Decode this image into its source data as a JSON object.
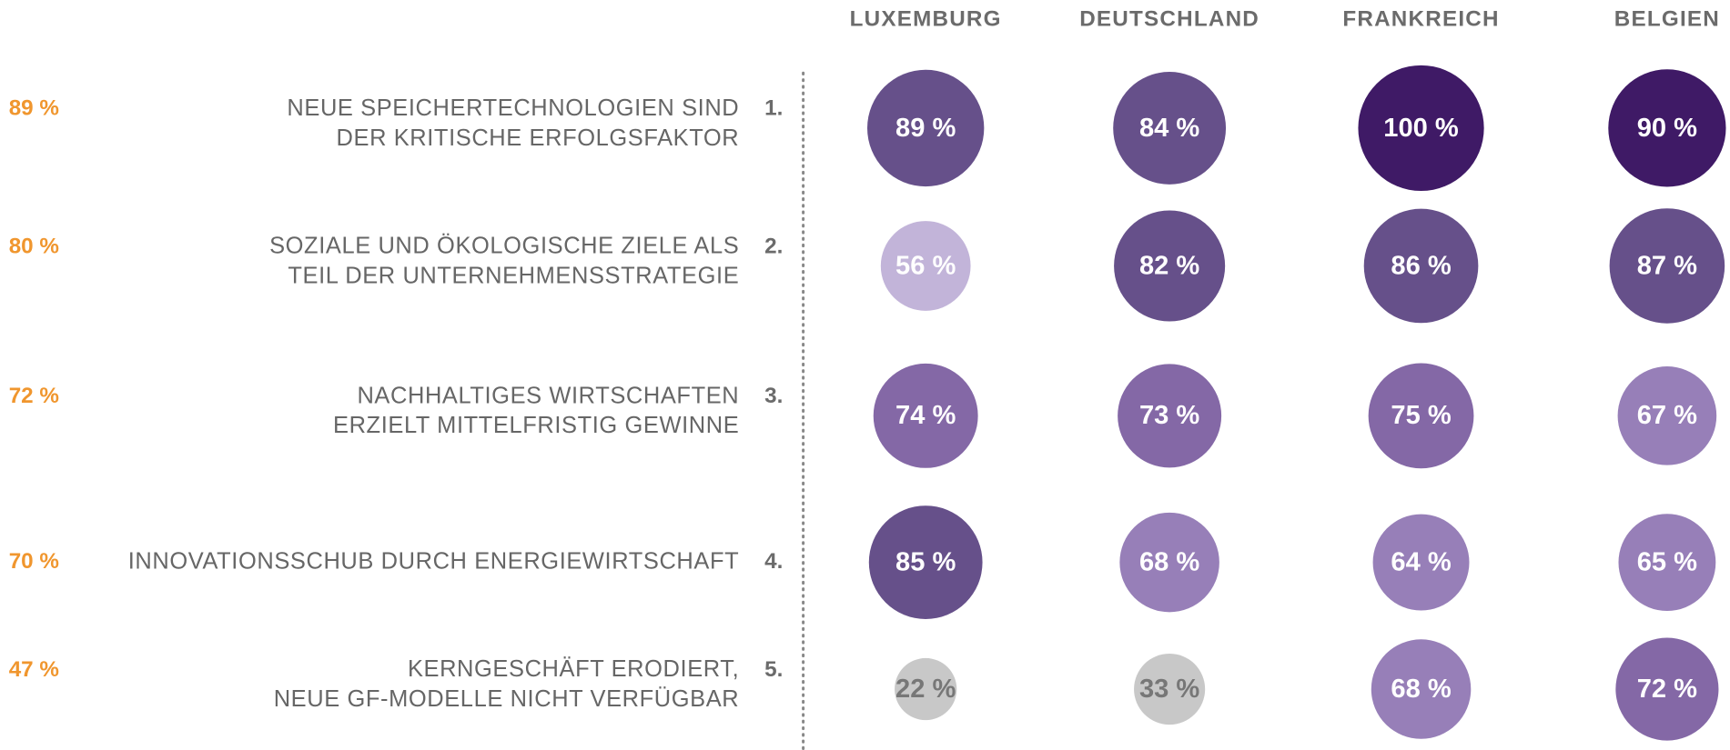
{
  "chart_data": {
    "type": "bubble",
    "categories": [
      "LUXEMBURG",
      "DEUTSCHLAND",
      "FRANKREICH",
      "BELGIEN"
    ],
    "series": [
      {
        "rank": "1.",
        "label_lines": [
          "NEUE SPEICHERTECHNOLOGIEN SIND",
          "DER KRITISCHE ERFOLGSFAKTOR"
        ],
        "total": 89,
        "total_label": "89 %",
        "values": [
          89,
          84,
          100,
          90
        ],
        "value_labels": [
          "89 %",
          "84 %",
          "100 %",
          "90 %"
        ],
        "colors": [
          "#66508a",
          "#66508a",
          "#3f1a66",
          "#3f1a66"
        ],
        "value_label_colors": [
          "#ffffff",
          "#ffffff",
          "#ffffff",
          "#ffffff"
        ]
      },
      {
        "rank": "2.",
        "label_lines": [
          "SOZIALE UND ÖKOLOGISCHE ZIELE ALS",
          "TEIL DER UNTERNEHMENSSTRATEGIE"
        ],
        "total": 80,
        "total_label": "80 %",
        "values": [
          56,
          82,
          86,
          87
        ],
        "value_labels": [
          "56 %",
          "82 %",
          "86 %",
          "87 %"
        ],
        "colors": [
          "#c2b4d9",
          "#66508a",
          "#66508a",
          "#66508a"
        ],
        "value_label_colors": [
          "#ffffff",
          "#ffffff",
          "#ffffff",
          "#ffffff"
        ]
      },
      {
        "rank": "3.",
        "label_lines": [
          "NACHHALTIGES WIRTSCHAFTEN",
          "ERZIELT MITTELFRISTIG GEWINNE"
        ],
        "total": 72,
        "total_label": "72 %",
        "values": [
          74,
          73,
          75,
          67
        ],
        "value_labels": [
          "74 %",
          "73 %",
          "75 %",
          "67 %"
        ],
        "colors": [
          "#8468a6",
          "#8468a6",
          "#8468a6",
          "#977fb8"
        ],
        "value_label_colors": [
          "#ffffff",
          "#ffffff",
          "#ffffff",
          "#ffffff"
        ]
      },
      {
        "rank": "4.",
        "label_lines": [
          "INNOVATIONSSCHUB DURCH ENERGIEWIRTSCHAFT"
        ],
        "total": 70,
        "total_label": "70 %",
        "values": [
          85,
          68,
          64,
          65
        ],
        "value_labels": [
          "85 %",
          "68 %",
          "64 %",
          "65 %"
        ],
        "colors": [
          "#66508a",
          "#977fb8",
          "#977fb8",
          "#977fb8"
        ],
        "value_label_colors": [
          "#ffffff",
          "#ffffff",
          "#ffffff",
          "#ffffff"
        ]
      },
      {
        "rank": "5.",
        "label_lines": [
          "KERNGESCHÄFT ERODIERT,",
          "NEUE GF-MODELLE NICHT VERFÜGBAR"
        ],
        "total": 47,
        "total_label": "47 %",
        "values": [
          22,
          33,
          68,
          72
        ],
        "value_labels": [
          "22 %",
          "33 %",
          "68 %",
          "72 %"
        ],
        "colors": [
          "#c8c8c8",
          "#c8c8c8",
          "#977fb8",
          "#8468a6"
        ],
        "value_label_colors": [
          "#777777",
          "#777777",
          "#ffffff",
          "#ffffff"
        ]
      }
    ]
  }
}
